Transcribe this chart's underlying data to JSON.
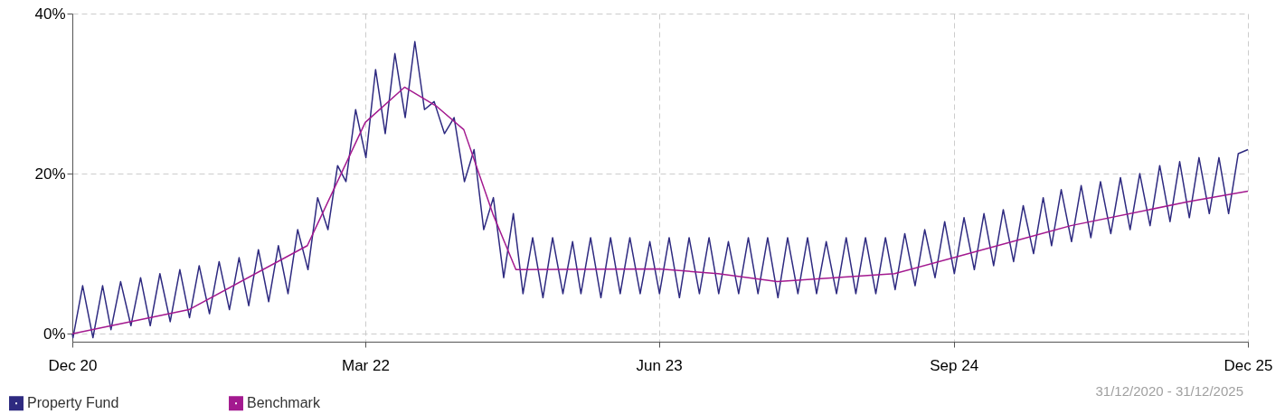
{
  "chart_data": {
    "type": "line",
    "xlim": [
      "2020-12-31",
      "2025-12-31"
    ],
    "xticks": [
      {
        "value": "2020-12-31",
        "label": "Dec 20"
      },
      {
        "value": "2022-03-31",
        "label": "Mar 22"
      },
      {
        "value": "2023-06-30",
        "label": "Jun 23"
      },
      {
        "value": "2024-09-30",
        "label": "Sep 24"
      },
      {
        "value": "2025-12-31",
        "label": "Dec 25"
      }
    ],
    "ylim": [
      -1,
      40
    ],
    "yticks": [
      {
        "value": 0,
        "label": "0%"
      },
      {
        "value": 20,
        "label": "20%"
      },
      {
        "value": 40,
        "label": "40%"
      }
    ],
    "grid": true,
    "legend": "bottom left",
    "annotations": [
      "31/12/2020 - 31/12/2025"
    ],
    "series": [
      {
        "name": "Property Fund",
        "color": "#2e2a80",
        "x": [
          "2020-12-31",
          "2021-01-01",
          "2021-01-16",
          "2021-02-01",
          "2021-02-16",
          "2021-03-01",
          "2021-03-16",
          "2021-04-01",
          "2021-04-16",
          "2021-05-01",
          "2021-05-16",
          "2021-06-01",
          "2021-06-16",
          "2021-07-01",
          "2021-07-16",
          "2021-08-01",
          "2021-08-16",
          "2021-09-01",
          "2021-09-16",
          "2021-10-01",
          "2021-10-16",
          "2021-11-01",
          "2021-11-16",
          "2021-12-01",
          "2021-12-16",
          "2022-01-01",
          "2022-01-16",
          "2022-02-01",
          "2022-02-16",
          "2022-03-01",
          "2022-03-16",
          "2022-04-01",
          "2022-04-16",
          "2022-05-01",
          "2022-05-16",
          "2022-06-01",
          "2022-06-16",
          "2022-07-01",
          "2022-07-16",
          "2022-08-01",
          "2022-08-16",
          "2022-09-01",
          "2022-09-16",
          "2022-10-01",
          "2022-10-16",
          "2022-11-01",
          "2022-11-16",
          "2022-12-01",
          "2022-12-16",
          "2023-01-01",
          "2023-01-16",
          "2023-02-01",
          "2023-02-16",
          "2023-03-01",
          "2023-03-16",
          "2023-04-01",
          "2023-04-16",
          "2023-05-01",
          "2023-05-16",
          "2023-06-01",
          "2023-06-16",
          "2023-07-01",
          "2023-07-16",
          "2023-08-01",
          "2023-08-16",
          "2023-09-01",
          "2023-09-16",
          "2023-10-01",
          "2023-10-16",
          "2023-11-01",
          "2023-11-16",
          "2023-12-01",
          "2023-12-16",
          "2024-01-01",
          "2024-01-16",
          "2024-02-01",
          "2024-02-16",
          "2024-03-01",
          "2024-03-16",
          "2024-04-01",
          "2024-04-16",
          "2024-05-01",
          "2024-05-16",
          "2024-06-01",
          "2024-06-16",
          "2024-07-01",
          "2024-07-16",
          "2024-08-01",
          "2024-08-16",
          "2024-09-01",
          "2024-09-16",
          "2024-10-01",
          "2024-10-16",
          "2024-11-01",
          "2024-11-16",
          "2024-12-01",
          "2024-12-16",
          "2025-01-01",
          "2025-01-16",
          "2025-02-01",
          "2025-02-16",
          "2025-03-01",
          "2025-03-16",
          "2025-04-01",
          "2025-04-16",
          "2025-05-01",
          "2025-05-16",
          "2025-06-01",
          "2025-06-16",
          "2025-07-01",
          "2025-07-16",
          "2025-08-01",
          "2025-08-16",
          "2025-09-01",
          "2025-09-16",
          "2025-10-01",
          "2025-10-16",
          "2025-11-01",
          "2025-11-16",
          "2025-12-01",
          "2025-12-16",
          "2025-12-31"
        ],
        "values": [
          0,
          -0.5,
          6,
          -0.5,
          6,
          0.5,
          6.5,
          1,
          7,
          1,
          7.5,
          1.5,
          8,
          2,
          8.5,
          2.5,
          9,
          3,
          9.5,
          3.5,
          10.5,
          4,
          11,
          5,
          13,
          8,
          17,
          13,
          21,
          19,
          28,
          22,
          33,
          25,
          35,
          27,
          36.5,
          28,
          29,
          25,
          27,
          19,
          23,
          13,
          17,
          7,
          15,
          5,
          12,
          4.5,
          12,
          5,
          11.5,
          5,
          12,
          4.5,
          12,
          5,
          12,
          5,
          11.5,
          5,
          12,
          4.5,
          12,
          5,
          12,
          5,
          11.5,
          5,
          12,
          5,
          12,
          4.5,
          12,
          5,
          12,
          5,
          11.5,
          5,
          12,
          5,
          12,
          5,
          12,
          5.5,
          12.5,
          6,
          13,
          7,
          14,
          7.5,
          14.5,
          8,
          15,
          8.5,
          15.5,
          9,
          16,
          10,
          17,
          11,
          18,
          11.5,
          18.5,
          12,
          19,
          12.5,
          19.5,
          13,
          20,
          13.5,
          21,
          14,
          21.5,
          14.5,
          22,
          15,
          22,
          15,
          22.5,
          23
        ]
      },
      {
        "name": "Benchmark",
        "color": "#a3198f",
        "x": [
          "2020-12-31",
          "2021-06-30",
          "2021-12-31",
          "2022-03-31",
          "2022-05-31",
          "2022-07-20",
          "2022-08-31",
          "2022-10-15",
          "2022-11-20",
          "2023-06-30",
          "2023-09-30",
          "2023-12-31",
          "2024-06-30",
          "2024-09-30",
          "2025-03-31",
          "2025-09-30",
          "2025-12-31"
        ],
        "values": [
          0,
          3,
          11,
          26.4,
          30.8,
          28.4,
          25.5,
          15,
          8,
          8.1,
          7.5,
          6.5,
          7.5,
          9.5,
          13.5,
          16.5,
          17.8
        ]
      }
    ]
  }
}
